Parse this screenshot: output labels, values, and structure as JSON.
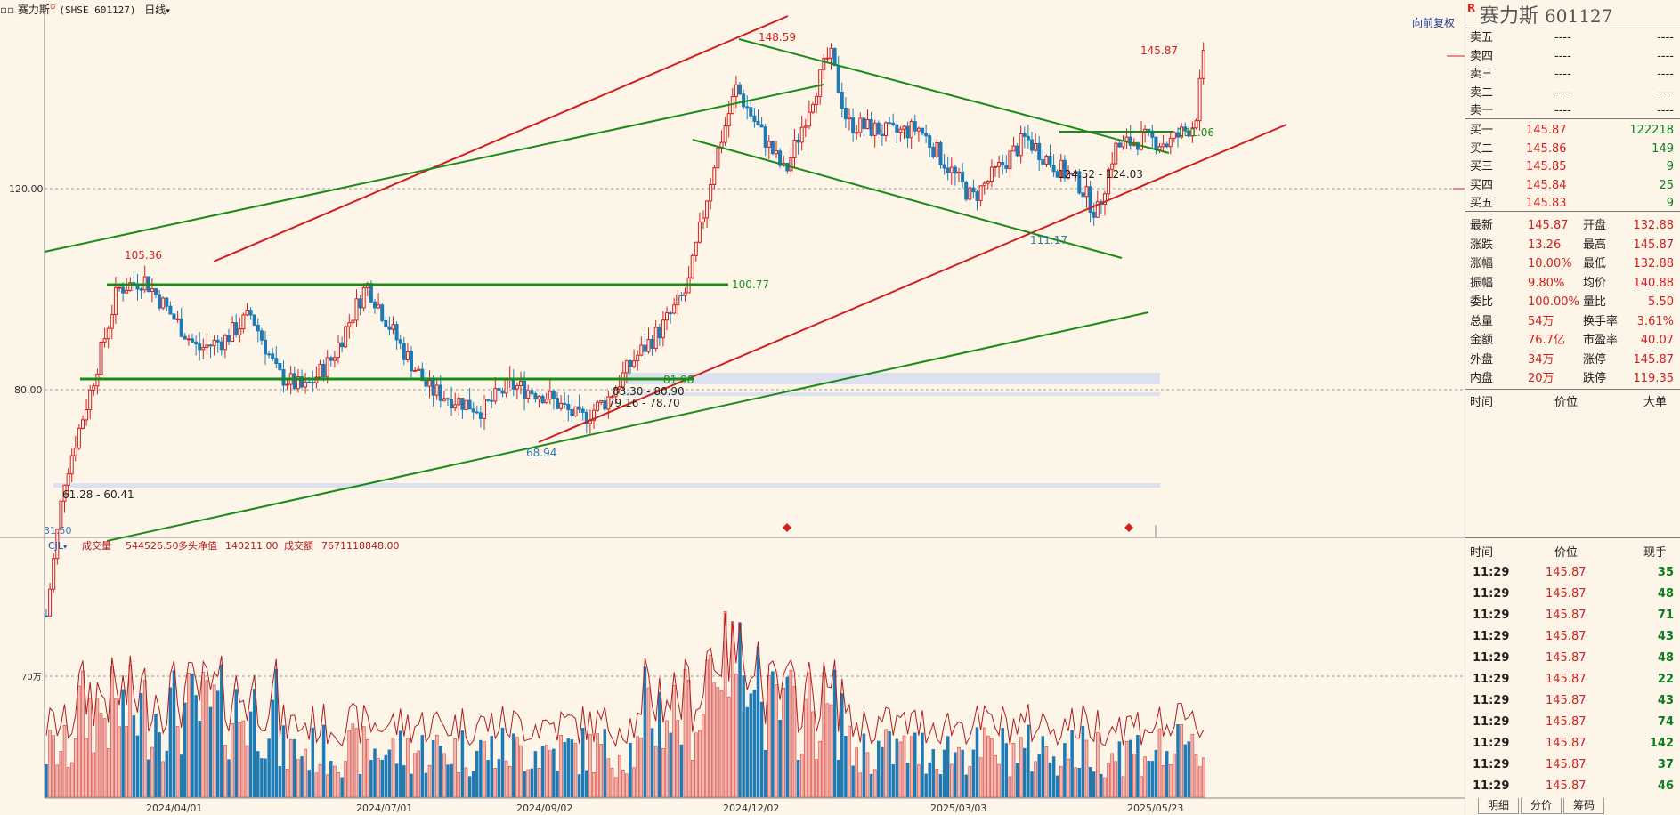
{
  "topbar": {
    "icons": [
      "window-restore-icon"
    ],
    "name": "赛力斯",
    "code": "(SHSE 601127)",
    "period": "日线",
    "restore_label": "向前复权"
  },
  "price_axis": [
    "120.00",
    "80.00"
  ],
  "volume_axis": [
    "70万"
  ],
  "date_axis": [
    "2024/04/01",
    "2024/07/01",
    "2024/09/02",
    "2024/12/02",
    "2025/03/03",
    "2025/05/23"
  ],
  "annotations": [
    "148.59",
    "145.87",
    "105.36",
    "100.77",
    "131.06",
    "124.52 - 124.03",
    "111.17",
    "81.98",
    "83.30 - 80.90",
    "79.16 - 78.70",
    "68.94",
    "61.28 - 60.41",
    "31.50"
  ],
  "volume_info": {
    "indicator": "CJL",
    "vol_label": "成交量",
    "vol": "544526.50",
    "net_label": "多头净值",
    "net": "140211.00",
    "amt_label": "成交额",
    "amt": "7671118848.00"
  },
  "panel": {
    "badge": "R",
    "title": "赛力斯",
    "code": "601127",
    "sell": [
      {
        "label": "卖五",
        "price": "----",
        "vol": "----"
      },
      {
        "label": "卖四",
        "price": "----",
        "vol": "----"
      },
      {
        "label": "卖三",
        "price": "----",
        "vol": "----"
      },
      {
        "label": "卖二",
        "price": "----",
        "vol": "----"
      },
      {
        "label": "卖一",
        "price": "----",
        "vol": "----"
      }
    ],
    "buy": [
      {
        "label": "买一",
        "price": "145.87",
        "vol": "122218"
      },
      {
        "label": "买二",
        "price": "145.86",
        "vol": "149"
      },
      {
        "label": "买三",
        "price": "145.85",
        "vol": "9"
      },
      {
        "label": "买四",
        "price": "145.84",
        "vol": "25"
      },
      {
        "label": "买五",
        "price": "145.83",
        "vol": "9"
      }
    ],
    "stats": [
      [
        "最新",
        "145.87",
        "开盘",
        "132.88"
      ],
      [
        "涨跌",
        "13.26",
        "最高",
        "145.87"
      ],
      [
        "涨幅",
        "10.00%",
        "最低",
        "132.88"
      ],
      [
        "振幅",
        "9.80%",
        "均价",
        "140.88"
      ],
      [
        "委比",
        "100.00%",
        "量比",
        "5.50"
      ],
      [
        "总量",
        "54万",
        "换手率",
        "3.61%"
      ],
      [
        "金额",
        "76.7亿",
        "市盈率",
        "40.07"
      ],
      [
        "外盘",
        "34万",
        "涨停",
        "145.87"
      ],
      [
        "内盘",
        "20万",
        "跌停",
        "119.35"
      ]
    ],
    "bigorder_header": [
      "时间",
      "价位",
      "大单"
    ],
    "trades_header": [
      "时间",
      "价位",
      "现手"
    ],
    "trades": [
      {
        "time": "11:29",
        "price": "145.87",
        "qty": "35"
      },
      {
        "time": "11:29",
        "price": "145.87",
        "qty": "48"
      },
      {
        "time": "11:29",
        "price": "145.87",
        "qty": "71"
      },
      {
        "time": "11:29",
        "price": "145.87",
        "qty": "43"
      },
      {
        "time": "11:29",
        "price": "145.87",
        "qty": "48"
      },
      {
        "time": "11:29",
        "price": "145.87",
        "qty": "22"
      },
      {
        "time": "11:29",
        "price": "145.87",
        "qty": "43"
      },
      {
        "time": "11:29",
        "price": "145.87",
        "qty": "74"
      },
      {
        "time": "11:29",
        "price": "145.87",
        "qty": "142"
      },
      {
        "time": "11:29",
        "price": "145.87",
        "qty": "37"
      },
      {
        "time": "11:29",
        "price": "145.87",
        "qty": "46"
      }
    ],
    "tabs": [
      "明细",
      "分价",
      "筹码"
    ]
  },
  "colors": {
    "up": "#d21e1e",
    "down": "#1e7ab4",
    "trend_red": "#d21e1e",
    "trend_green": "#1a8a1a"
  },
  "chart_data": {
    "type": "candlestick",
    "price_range": [
      31.5,
      148.59
    ],
    "date_range": [
      "2024/01",
      "2025/05/23"
    ],
    "key_points": [
      {
        "label": "start low",
        "value": 31.5
      },
      {
        "label": "high",
        "value": 105.36
      },
      {
        "label": "low",
        "value": 68.94
      },
      {
        "label": "high",
        "value": 148.59
      },
      {
        "label": "low",
        "value": 111.17
      },
      {
        "label": "latest",
        "value": 145.87
      }
    ],
    "horizontal_levels": [
      100.77,
      81.98,
      131.06
    ]
  }
}
